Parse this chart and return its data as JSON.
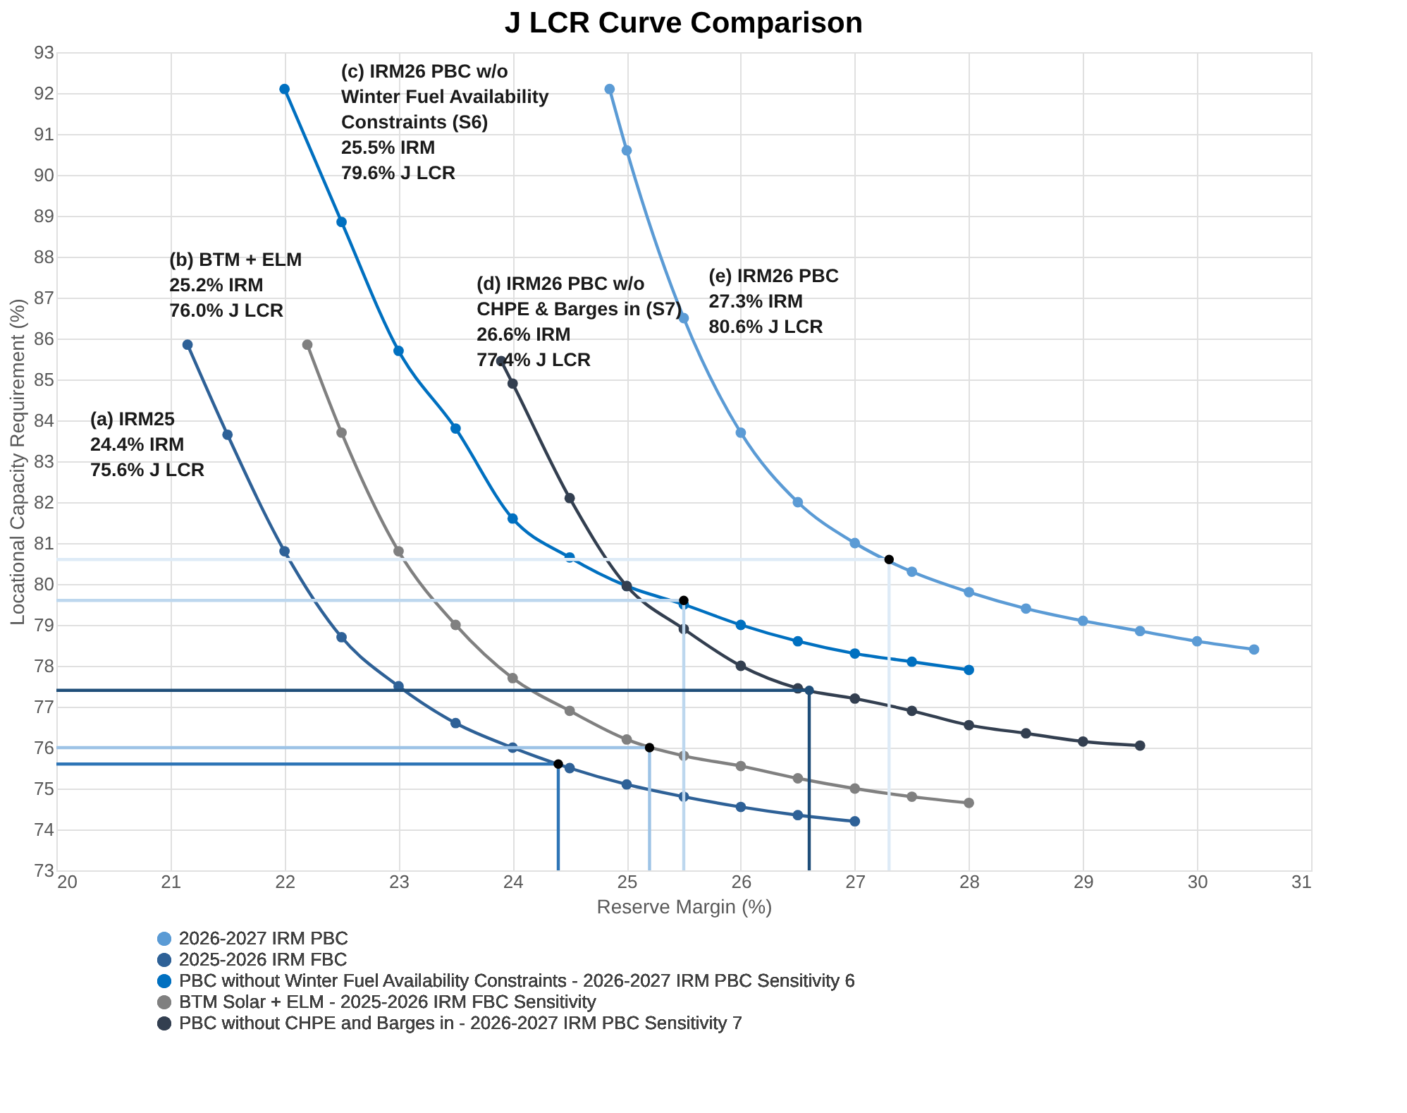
{
  "chart_data": {
    "type": "line",
    "title": "J LCR Curve Comparison",
    "xlabel": "Reserve Margin (%)",
    "ylabel": "Locational Capacity Requirement (%)",
    "xlim": [
      20,
      31
    ],
    "xticks": [
      20,
      21,
      22,
      23,
      24,
      25,
      26,
      27,
      28,
      29,
      30,
      31
    ],
    "ylim": [
      73,
      93
    ],
    "yticks": [
      73,
      74,
      75,
      76,
      77,
      78,
      79,
      80,
      81,
      82,
      83,
      84,
      85,
      86,
      87,
      88,
      89,
      90,
      91,
      92,
      93
    ],
    "grid": true,
    "legend": "bottom left",
    "marker": "circle",
    "line_style": "solid",
    "series": [
      {
        "name": "2026-2027 IRM PBC",
        "color": "#5b9bd5",
        "x": [
          24.85,
          25,
          25.5,
          26,
          26.5,
          27,
          27.5,
          28,
          28.5,
          29,
          29.5,
          30,
          30.5
        ],
        "values": [
          92.1,
          90.6,
          86.5,
          83.7,
          82.0,
          81.0,
          80.3,
          79.8,
          79.4,
          79.1,
          78.85,
          78.6,
          78.4
        ]
      },
      {
        "name": "2025-2026 IRM FBC",
        "color": "#2e6197",
        "x": [
          21.15,
          21.5,
          22,
          22.5,
          23,
          23.5,
          24,
          24.5,
          25,
          25.5,
          26,
          26.5,
          27
        ],
        "values": [
          85.85,
          83.65,
          80.8,
          78.7,
          77.5,
          76.6,
          76.0,
          75.5,
          75.1,
          74.8,
          74.55,
          74.35,
          74.2
        ]
      },
      {
        "name": "PBC without Winter Fuel Availability Constraints - 2026-2027 IRM PBC Sensitivity 6",
        "color": "#0070c0",
        "x": [
          22,
          22.5,
          23,
          23.5,
          24,
          24.5,
          25,
          25.5,
          26,
          26.5,
          27,
          27.5,
          28
        ],
        "values": [
          92.1,
          88.85,
          85.7,
          83.8,
          81.6,
          80.65,
          79.95,
          79.5,
          79.0,
          78.6,
          78.3,
          78.1,
          77.9
        ]
      },
      {
        "name": "BTM Solar + ELM - 2025-2026 IRM FBC Sensitivity",
        "color": "#808080",
        "x": [
          22.2,
          22.5,
          23,
          23.5,
          24,
          24.5,
          25,
          25.5,
          26,
          26.5,
          27,
          27.5,
          28
        ],
        "values": [
          85.85,
          83.7,
          80.8,
          79.0,
          77.7,
          76.9,
          76.2,
          75.8,
          75.55,
          75.25,
          75.0,
          74.8,
          74.65
        ]
      },
      {
        "name": "PBC without CHPE and Barges in - 2026-2027 IRM PBC Sensitivity 7",
        "color": "#333f50",
        "x": [
          23.9,
          24,
          24.5,
          25,
          25.5,
          26,
          26.5,
          27,
          27.5,
          28,
          28.5,
          29,
          29.5
        ],
        "values": [
          85.45,
          84.9,
          82.1,
          79.95,
          78.9,
          78.0,
          77.45,
          77.2,
          76.9,
          76.55,
          76.35,
          76.15,
          76.05
        ]
      },
      {
        "type": "line",
        "marker": "none",
        "color": "#2e75b6",
        "x": [
          20,
          24.4,
          24.4
        ],
        "values": [
          75.6,
          75.6,
          73
        ]
      },
      {
        "type": "line",
        "marker": "none",
        "color": "#9dc3e6",
        "x": [
          20,
          25.2,
          25.2
        ],
        "values": [
          76.0,
          76.0,
          73
        ]
      },
      {
        "type": "line",
        "marker": "none",
        "color": "#bdd7ee",
        "x": [
          20,
          25.5,
          25.5
        ],
        "values": [
          79.6,
          79.6,
          73
        ]
      },
      {
        "type": "line",
        "marker": "none",
        "color": "#1f4e79",
        "x": [
          20,
          26.6,
          26.6
        ],
        "values": [
          77.4,
          77.4,
          73
        ]
      },
      {
        "type": "line",
        "marker": "none",
        "color": "#deebf7",
        "x": [
          20,
          27.3,
          27.3
        ],
        "values": [
          80.6,
          80.6,
          73
        ]
      },
      {
        "type": "scatter",
        "color": "#000000",
        "colors": [
          "#000000",
          "#000000",
          "#000000",
          "#1f4e79",
          "#000000"
        ],
        "x": [
          24.4,
          25.2,
          25.5,
          26.6,
          27.3
        ],
        "values": [
          75.6,
          76.0,
          79.6,
          77.4,
          80.6
        ]
      }
    ],
    "annotations": [
      "(a) IRM25\n24.4% IRM\n75.6% J LCR",
      "(b) BTM + ELM\n25.2% IRM\n76.0% J LCR",
      "(c) IRM26 PBC w/o\nWinter Fuel Availability\nConstraints (S6)\n25.5% IRM\n79.6% J LCR",
      "(d) IRM26 PBC w/o\nCHPE & Barges in (S7)\n26.6% IRM\n77.4% J LCR",
      "(e) IRM26 PBC\n27.3% IRM\n80.6% J LCR"
    ]
  }
}
